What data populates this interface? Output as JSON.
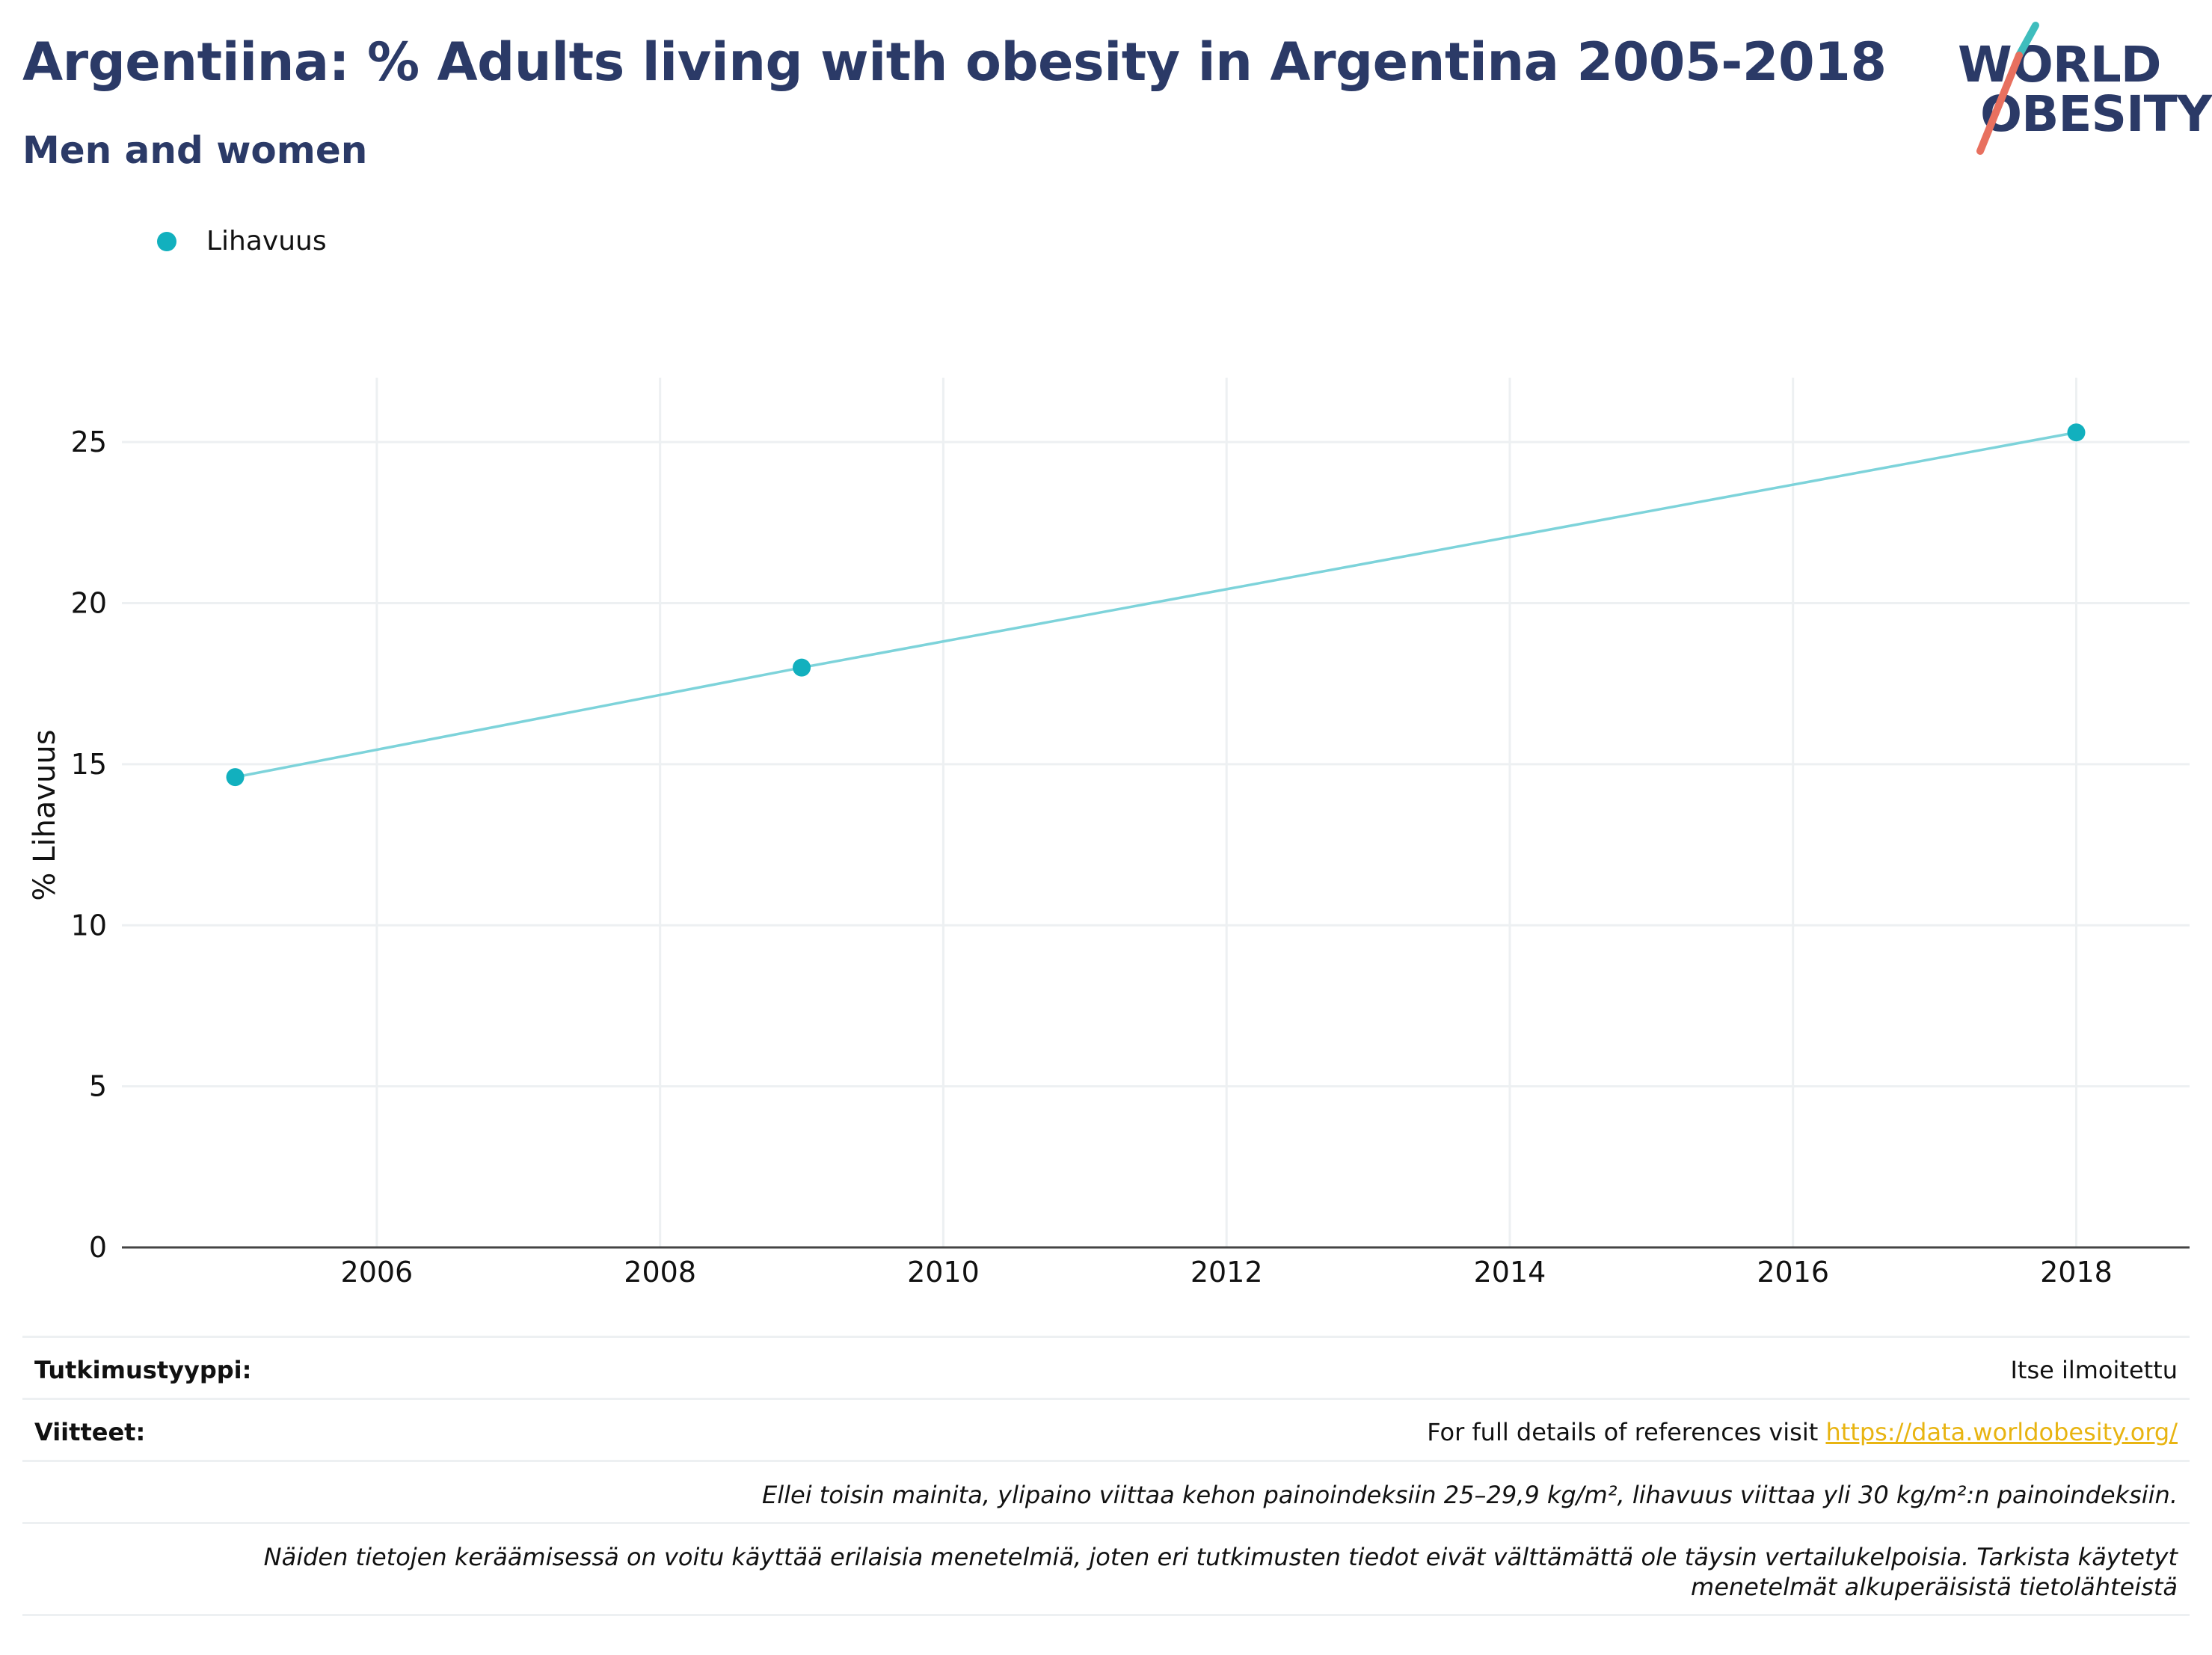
{
  "header": {
    "title": "Argentiina: % Adults living with obesity in Argentina 2005-2018",
    "subtitle": "Men and women"
  },
  "logo": {
    "line1": "WORLD",
    "line2": "OBESITY",
    "accent_teal": "#3fbdbd",
    "accent_coral": "#e8705f"
  },
  "colors": {
    "series": "#12b0be",
    "line": "#7dd3da",
    "grid": "#edf0f2",
    "text": "#2b3a67",
    "link": "#e8b411"
  },
  "chart_data": {
    "type": "line",
    "title": "Argentiina: % Adults living with obesity in Argentina 2005-2018",
    "subtitle": "Men and women",
    "ylabel": "% Lihavuus",
    "xlabel": "",
    "x_ticks": [
      2006,
      2008,
      2010,
      2012,
      2014,
      2016,
      2018
    ],
    "y_ticks": [
      0,
      5,
      10,
      15,
      20,
      25
    ],
    "xlim": [
      2004.2,
      2018.8
    ],
    "ylim": [
      0,
      27
    ],
    "grid": true,
    "legend_position": "top-left",
    "series": [
      {
        "name": "Lihavuus",
        "x": [
          2005,
          2009,
          2018
        ],
        "y": [
          14.6,
          18.0,
          25.3
        ]
      }
    ]
  },
  "footer": {
    "study_type_label": "Tutkimustyyppi:",
    "study_type_value": "Itse ilmoitettu",
    "references_label": "Viitteet:",
    "references_text": "For full details of references visit ",
    "references_link": "https://data.worldobesity.org/",
    "note1": "Ellei toisin mainita, ylipaino viittaa kehon painoindeksiin 25–29,9 kg/m², lihavuus viittaa yli 30 kg/m²:n painoindeksiin.",
    "note2": "Näiden tietojen keräämisessä on voitu käyttää erilaisia menetelmiä, joten eri tutkimusten tiedot eivät välttämättä ole täysin vertailukelpoisia. Tarkista käytetyt menetelmät alkuperäisistä tietolähteistä"
  }
}
